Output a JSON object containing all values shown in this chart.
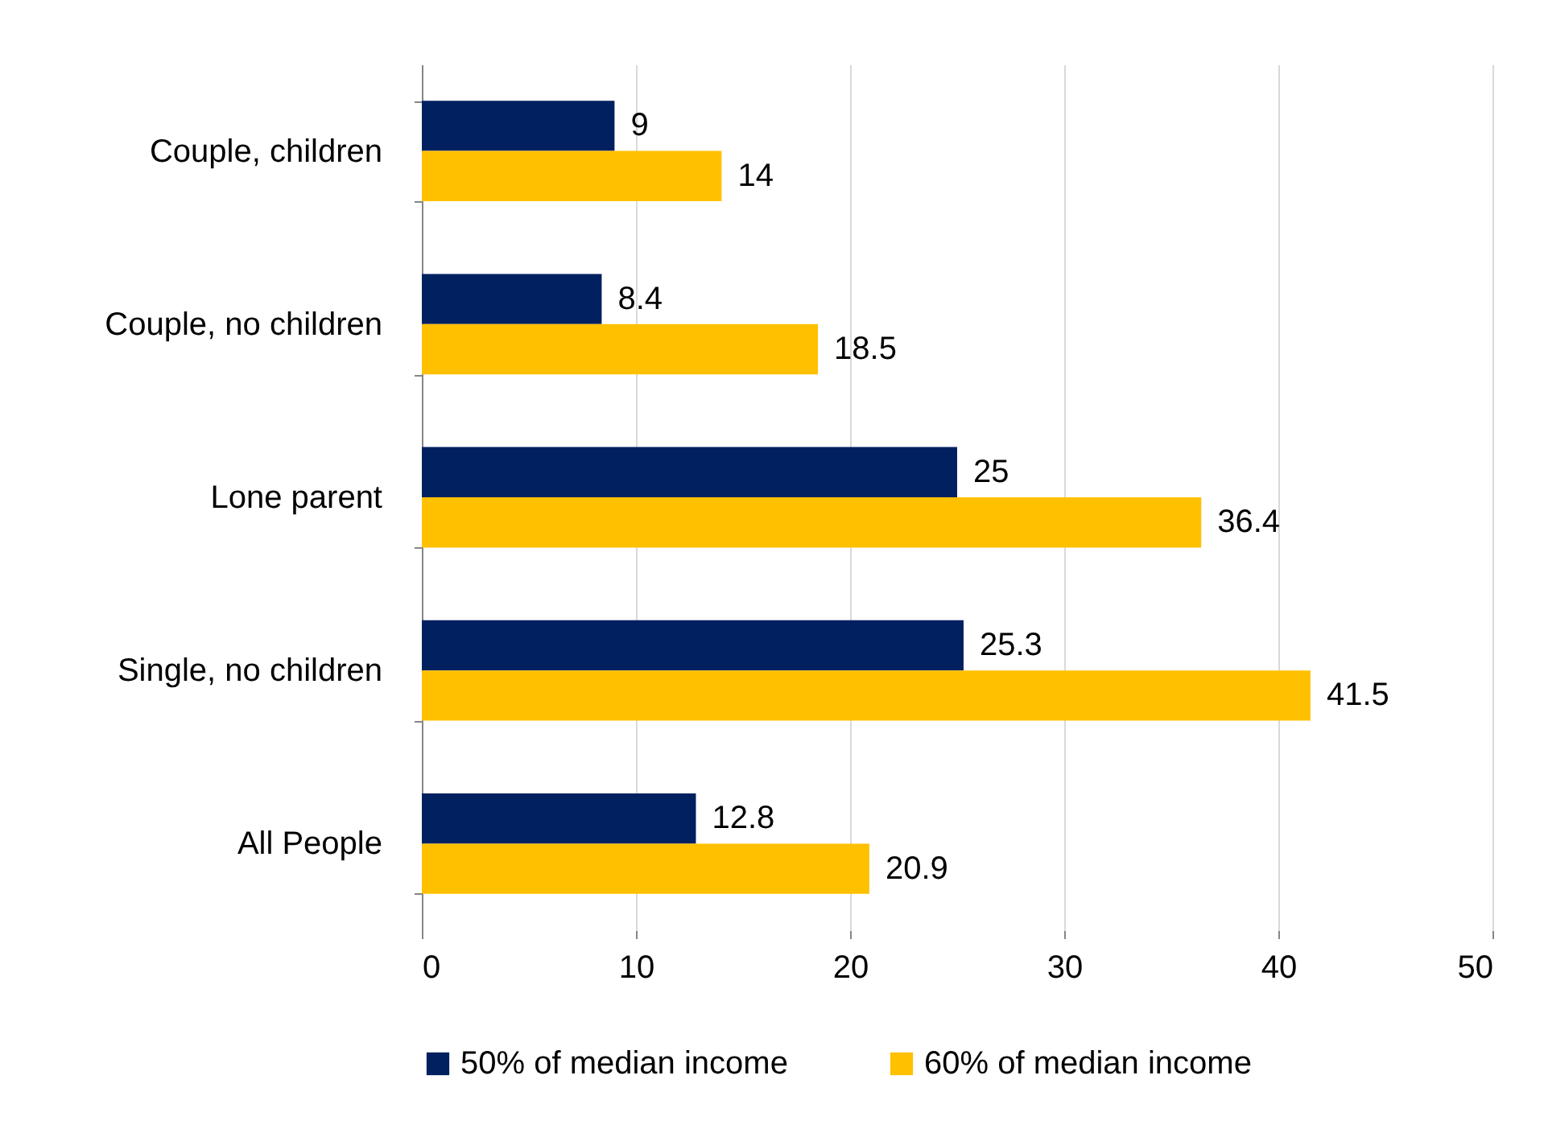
{
  "chart_data": {
    "type": "bar",
    "orientation": "horizontal",
    "categories": [
      "Couple, children",
      "Couple, no children",
      "Lone parent",
      "Single, no children",
      "All People"
    ],
    "series": [
      {
        "name": "50% of median income",
        "color": "#002060",
        "values": [
          9,
          8.4,
          25,
          25.3,
          12.8
        ]
      },
      {
        "name": "60% of median income",
        "color": "#ffc000",
        "values": [
          14,
          18.5,
          36.4,
          41.5,
          20.9
        ]
      }
    ],
    "xlim": [
      0,
      50
    ],
    "xticks": [
      0,
      10,
      20,
      30,
      40,
      50
    ],
    "grid": "x",
    "legend": "bottom",
    "data_labels": true
  }
}
